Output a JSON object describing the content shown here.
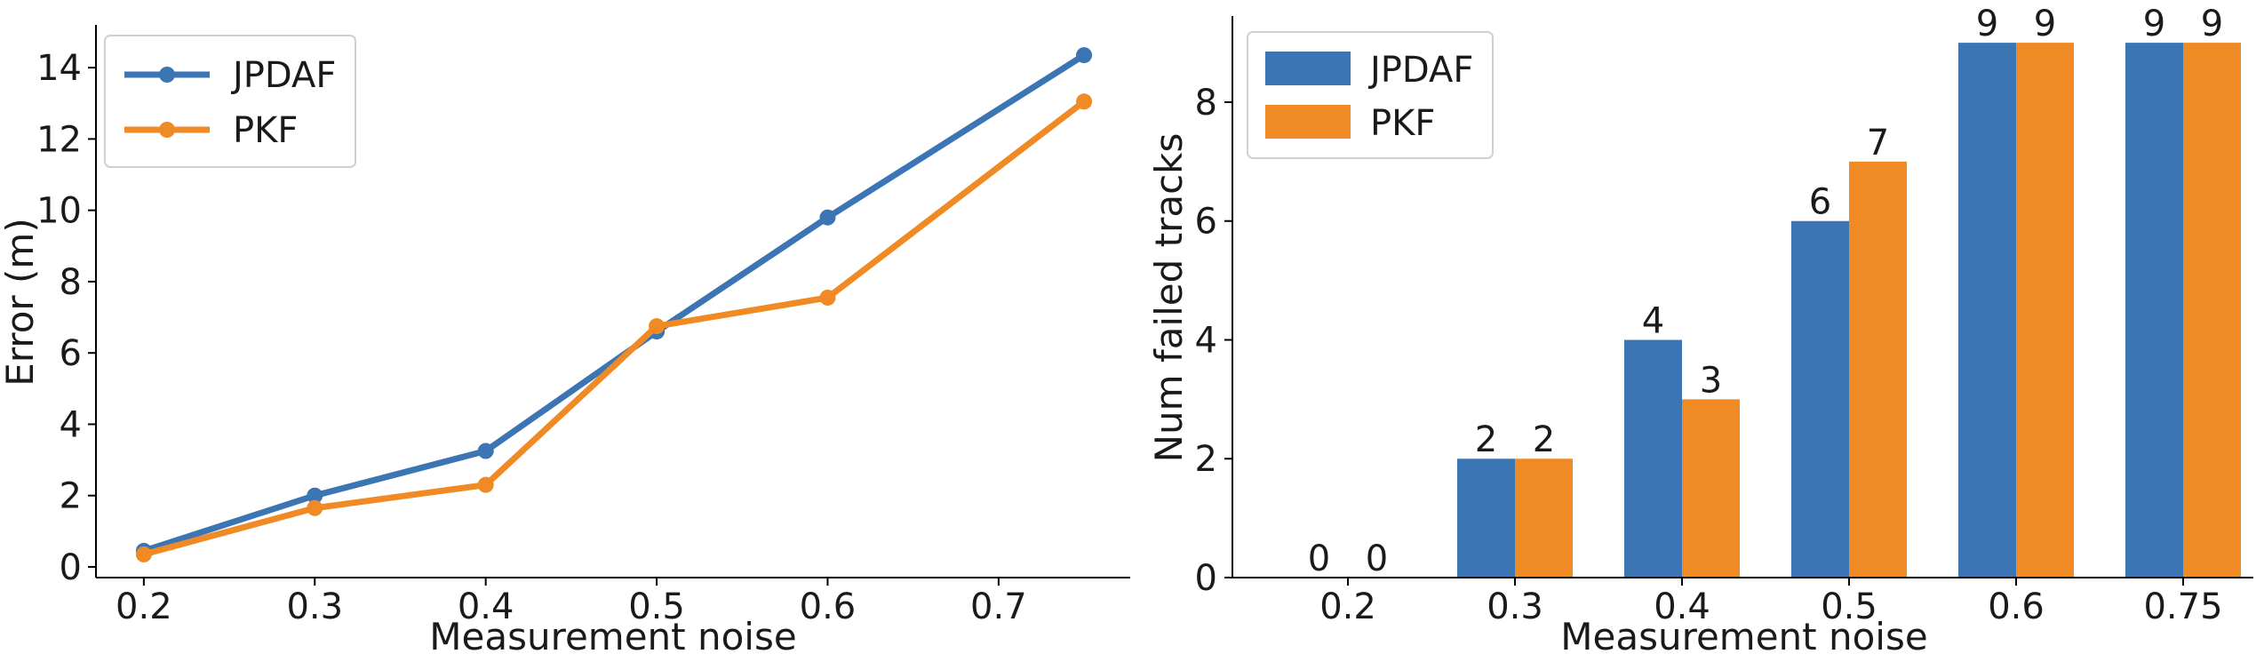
{
  "chart_data": [
    {
      "type": "line",
      "xlabel": "Measurement noise",
      "ylabel": "Error (m)",
      "x": [
        0.2,
        0.3,
        0.4,
        0.5,
        0.6,
        0.75
      ],
      "xticks": [
        0.2,
        0.3,
        0.4,
        0.5,
        0.6,
        0.7
      ],
      "xtick_labels": [
        "0.2",
        "0.3",
        "0.4",
        "0.5",
        "0.6",
        "0.7"
      ],
      "yticks": [
        0,
        2,
        4,
        6,
        8,
        10,
        12,
        14
      ],
      "ytick_labels": [
        "0",
        "2",
        "4",
        "6",
        "8",
        "10",
        "12",
        "14"
      ],
      "xlim": [
        0.172,
        0.777
      ],
      "ylim": [
        -0.3,
        15.2
      ],
      "series": [
        {
          "name": "JPDAF",
          "color": "#3b75b4",
          "values": [
            0.45,
            2.0,
            3.25,
            6.6,
            9.8,
            14.35
          ]
        },
        {
          "name": "PKF",
          "color": "#f08a24",
          "values": [
            0.35,
            1.65,
            2.3,
            6.75,
            7.55,
            13.05
          ]
        }
      ],
      "legend": {
        "position": "top-left",
        "entries": [
          "JPDAF",
          "PKF"
        ]
      },
      "grid": false
    },
    {
      "type": "bar",
      "xlabel": "Measurement noise",
      "ylabel": "Num failed tracks",
      "categories": [
        "0.2",
        "0.3",
        "0.4",
        "0.5",
        "0.6",
        "0.75"
      ],
      "yticks": [
        0,
        2,
        4,
        6,
        8
      ],
      "ytick_labels": [
        "0",
        "2",
        "4",
        "6",
        "8"
      ],
      "ylim": [
        0,
        9.45
      ],
      "series": [
        {
          "name": "JPDAF",
          "color": "#3b75b4",
          "values": [
            0,
            2,
            4,
            6,
            9,
            9
          ]
        },
        {
          "name": "PKF",
          "color": "#f08a24",
          "values": [
            0,
            2,
            3,
            7,
            9,
            9
          ]
        }
      ],
      "data_labels": true,
      "legend": {
        "position": "top-left",
        "entries": [
          "JPDAF",
          "PKF"
        ]
      },
      "grid": false
    }
  ]
}
